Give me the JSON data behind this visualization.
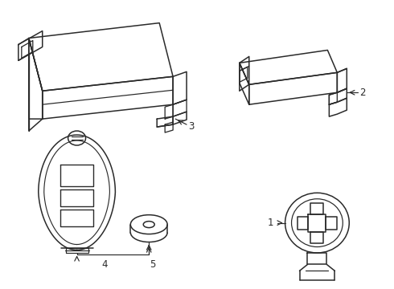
{
  "bg_color": "#ffffff",
  "line_color": "#2a2a2a",
  "line_width": 1.1,
  "label_fontsize": 8.5,
  "fig_width": 4.9,
  "fig_height": 3.6,
  "dpi": 100
}
